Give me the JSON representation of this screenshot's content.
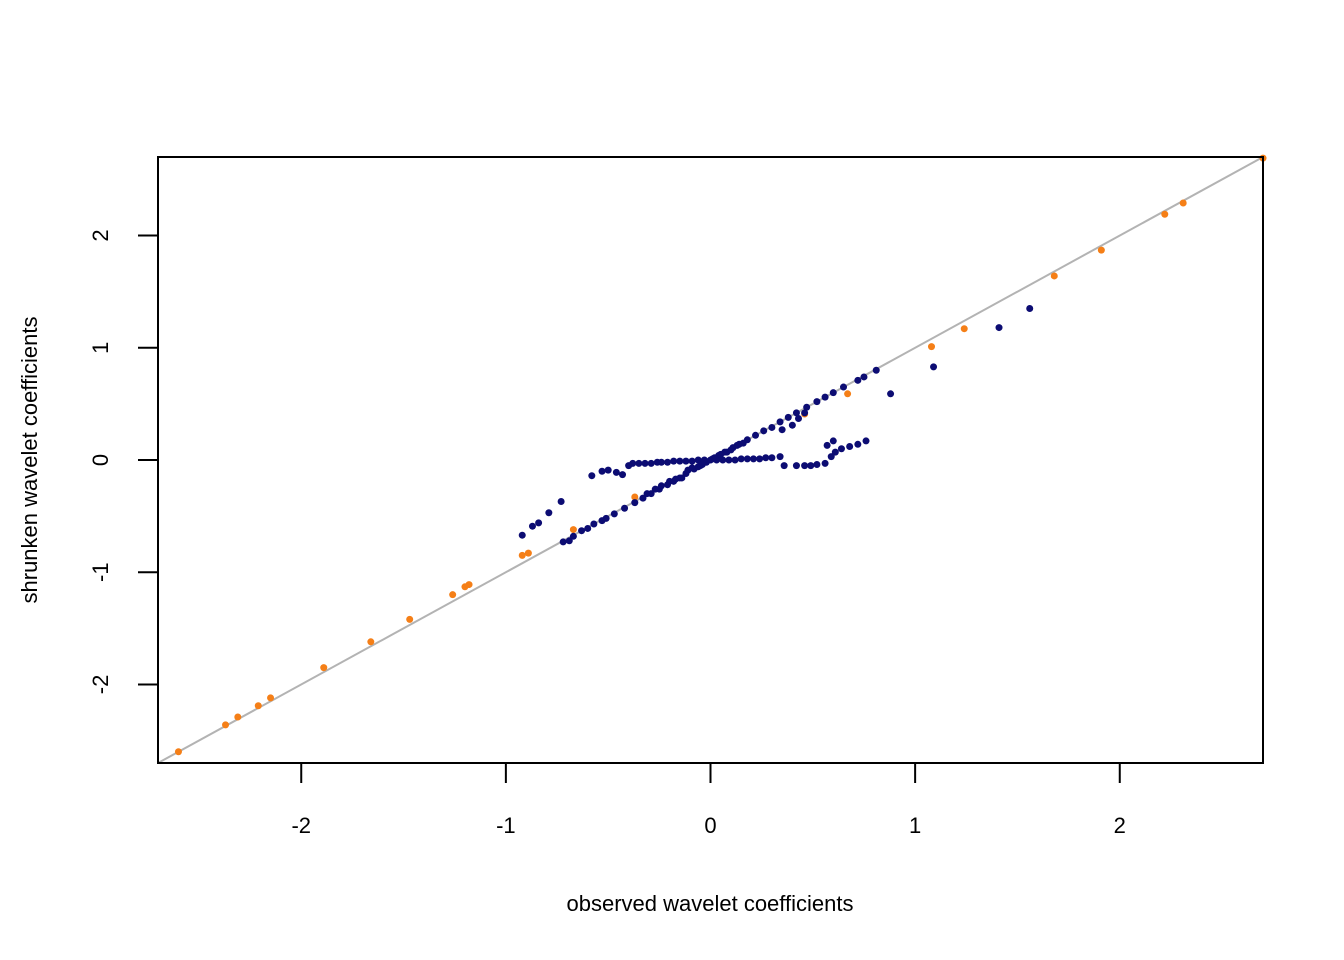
{
  "chart_data": {
    "type": "scatter",
    "title": "",
    "xlabel": "observed wavelet coefficients",
    "ylabel": "shrunken wavelet coefficients",
    "xlim": [
      -2.7,
      2.7
    ],
    "ylim": [
      -2.7,
      2.7
    ],
    "xticks": [
      -2,
      -1,
      0,
      1,
      2
    ],
    "yticks": [
      -2,
      -1,
      0,
      1,
      2
    ],
    "xtick_labels": [
      "-2",
      "-1",
      "0",
      "1",
      "2"
    ],
    "ytick_labels": [
      "-2",
      "-1",
      "0",
      "1",
      "2"
    ],
    "grid": false,
    "legend": "none",
    "reference_line": {
      "type": "identity",
      "color": "#b3b3b3"
    },
    "series": [
      {
        "color": "#f57f17",
        "points": [
          [
            -2.6,
            -2.6
          ],
          [
            -2.37,
            -2.36
          ],
          [
            -2.31,
            -2.29
          ],
          [
            -2.21,
            -2.19
          ],
          [
            -2.15,
            -2.12
          ],
          [
            -1.89,
            -1.85
          ],
          [
            -1.66,
            -1.62
          ],
          [
            -1.47,
            -1.42
          ],
          [
            -1.26,
            -1.2
          ],
          [
            -1.18,
            -1.11
          ],
          [
            -1.2,
            -1.13
          ],
          [
            -0.92,
            -0.85
          ],
          [
            -0.89,
            -0.83
          ],
          [
            -0.67,
            -0.62
          ],
          [
            -0.37,
            -0.33
          ],
          [
            0.46,
            0.41
          ],
          [
            0.67,
            0.59
          ],
          [
            1.08,
            1.01
          ],
          [
            1.24,
            1.17
          ],
          [
            1.68,
            1.64
          ],
          [
            1.91,
            1.87
          ],
          [
            2.22,
            2.19
          ],
          [
            2.31,
            2.29
          ],
          [
            2.7,
            2.69
          ]
        ]
      },
      {
        "color": "#0c0c73",
        "points": [
          [
            -0.92,
            -0.67
          ],
          [
            -0.87,
            -0.59
          ],
          [
            -0.84,
            -0.56
          ],
          [
            -0.79,
            -0.47
          ],
          [
            -0.73,
            -0.37
          ],
          [
            -0.72,
            -0.73
          ],
          [
            -0.69,
            -0.72
          ],
          [
            -0.67,
            -0.68
          ],
          [
            -0.63,
            -0.63
          ],
          [
            -0.6,
            -0.61
          ],
          [
            -0.57,
            -0.57
          ],
          [
            -0.53,
            -0.54
          ],
          [
            -0.51,
            -0.52
          ],
          [
            -0.47,
            -0.48
          ],
          [
            -0.42,
            -0.43
          ],
          [
            -0.37,
            -0.38
          ],
          [
            -0.33,
            -0.34
          ],
          [
            -0.29,
            -0.3
          ],
          [
            -0.25,
            -0.26
          ],
          [
            -0.21,
            -0.22
          ],
          [
            -0.18,
            -0.19
          ],
          [
            -0.15,
            -0.16
          ],
          [
            -0.12,
            -0.12
          ],
          [
            -0.08,
            -0.08
          ],
          [
            -0.05,
            -0.05
          ],
          [
            -0.02,
            -0.02
          ],
          [
            0.01,
            0.01
          ],
          [
            0.04,
            0.04
          ],
          [
            0.07,
            0.07
          ],
          [
            0.11,
            0.11
          ],
          [
            0.14,
            0.14
          ],
          [
            0.18,
            0.18
          ],
          [
            0.22,
            0.22
          ],
          [
            0.26,
            0.26
          ],
          [
            0.3,
            0.29
          ],
          [
            0.34,
            0.34
          ],
          [
            0.38,
            0.38
          ],
          [
            0.42,
            0.42
          ],
          [
            0.47,
            0.47
          ],
          [
            0.52,
            0.52
          ],
          [
            0.56,
            0.56
          ],
          [
            0.6,
            0.6
          ],
          [
            0.65,
            0.65
          ],
          [
            0.72,
            0.71
          ],
          [
            0.75,
            0.74
          ],
          [
            0.81,
            0.8
          ],
          [
            0.88,
            0.59
          ],
          [
            1.09,
            0.83
          ],
          [
            1.41,
            1.18
          ],
          [
            1.56,
            1.35
          ],
          [
            -0.58,
            -0.14
          ],
          [
            -0.53,
            -0.1
          ],
          [
            -0.5,
            -0.09
          ],
          [
            -0.46,
            -0.11
          ],
          [
            -0.43,
            -0.13
          ],
          [
            -0.4,
            -0.05
          ],
          [
            -0.38,
            -0.03
          ],
          [
            -0.35,
            -0.03
          ],
          [
            -0.32,
            -0.03
          ],
          [
            -0.29,
            -0.03
          ],
          [
            -0.26,
            -0.02
          ],
          [
            -0.24,
            -0.02
          ],
          [
            -0.21,
            -0.02
          ],
          [
            -0.18,
            -0.01
          ],
          [
            -0.15,
            -0.01
          ],
          [
            -0.12,
            -0.01
          ],
          [
            -0.09,
            -0.01
          ],
          [
            -0.06,
            0.0
          ],
          [
            -0.03,
            0.0
          ],
          [
            0.0,
            0.0
          ],
          [
            0.03,
            0.0
          ],
          [
            0.06,
            0.0
          ],
          [
            0.09,
            0.0
          ],
          [
            0.12,
            0.0
          ],
          [
            0.15,
            0.01
          ],
          [
            0.18,
            0.01
          ],
          [
            0.21,
            0.01
          ],
          [
            0.24,
            0.01
          ],
          [
            0.27,
            0.02
          ],
          [
            0.3,
            0.02
          ],
          [
            0.34,
            0.03
          ],
          [
            0.36,
            -0.05
          ],
          [
            0.42,
            -0.05
          ],
          [
            0.46,
            -0.05
          ],
          [
            0.49,
            -0.05
          ],
          [
            0.52,
            -0.04
          ],
          [
            0.56,
            -0.03
          ],
          [
            0.59,
            0.03
          ],
          [
            0.61,
            0.07
          ],
          [
            0.64,
            0.1
          ],
          [
            0.68,
            0.12
          ],
          [
            0.72,
            0.14
          ],
          [
            0.76,
            0.17
          ],
          [
            0.57,
            0.13
          ],
          [
            0.6,
            0.17
          ],
          [
            0.4,
            0.31
          ],
          [
            0.43,
            0.37
          ],
          [
            0.46,
            0.42
          ],
          [
            0.35,
            0.27
          ],
          [
            -0.31,
            -0.3
          ],
          [
            -0.27,
            -0.26
          ],
          [
            -0.24,
            -0.23
          ],
          [
            -0.2,
            -0.19
          ],
          [
            -0.17,
            -0.17
          ],
          [
            -0.14,
            -0.16
          ],
          [
            -0.11,
            -0.09
          ],
          [
            -0.09,
            -0.07
          ],
          [
            -0.06,
            -0.06
          ],
          [
            -0.04,
            -0.04
          ],
          [
            0.02,
            0.02
          ],
          [
            0.05,
            0.05
          ],
          [
            0.08,
            0.07
          ],
          [
            0.1,
            0.09
          ],
          [
            0.13,
            0.13
          ],
          [
            0.16,
            0.15
          ]
        ]
      }
    ]
  }
}
